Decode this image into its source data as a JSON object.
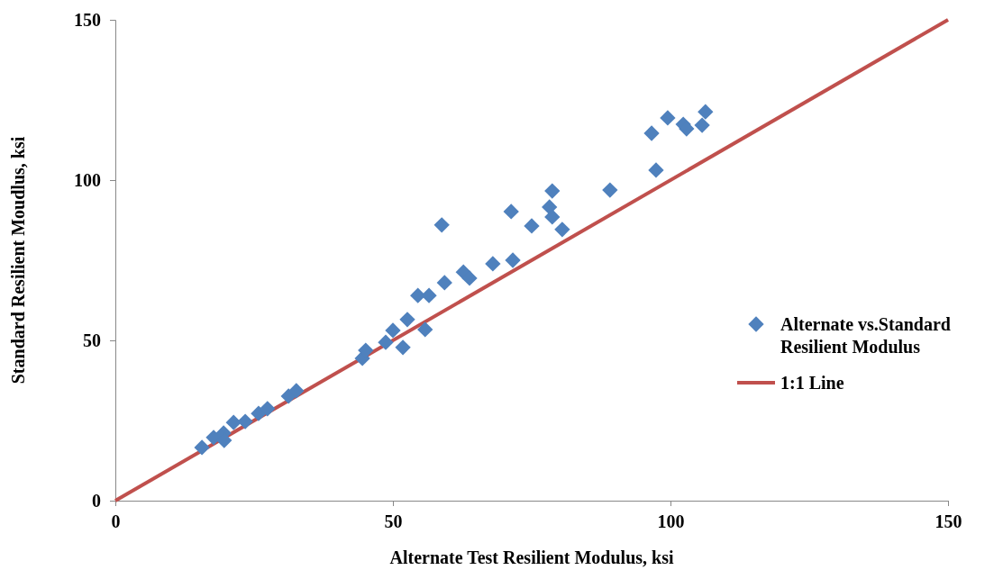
{
  "chart_data": {
    "type": "scatter",
    "xlabel": "Alternate Test Resilient Modulus, ksi",
    "ylabel": "Standard Resilient Moudlus, ksi",
    "xlim": [
      0,
      150
    ],
    "xticks": [
      0,
      50,
      100,
      150
    ],
    "ylim": [
      0,
      150
    ],
    "yticks": [
      0,
      50,
      100,
      150
    ],
    "grid": false,
    "legend": "right",
    "series": [
      {
        "name": "Alternate vs.Standard Resilient Modulus",
        "marker": "diamond",
        "color": "#4f81bd",
        "x": [
          15.6,
          17.7,
          19.5,
          19.6,
          21.3,
          23.4,
          25.8,
          27.4,
          31.2,
          32.6,
          44.5,
          45.1,
          48.7,
          50.0,
          51.8,
          52.6,
          54.5,
          56.5,
          55.8,
          58.8,
          59.3,
          62.7,
          63.8,
          68.0,
          71.3,
          71.6,
          75.0,
          78.2,
          78.7,
          78.7,
          80.5,
          89.1,
          96.6,
          97.4,
          99.5,
          102.3,
          102.9,
          105.7,
          106.3
        ],
        "values": [
          16.6,
          19.7,
          21.1,
          18.8,
          24.4,
          24.7,
          27.2,
          28.7,
          32.6,
          34.3,
          44.4,
          46.9,
          49.4,
          53.1,
          47.8,
          56.5,
          64.0,
          64.0,
          53.4,
          86.0,
          68.0,
          71.3,
          69.4,
          73.9,
          90.2,
          75.0,
          85.7,
          91.6,
          96.6,
          88.5,
          84.6,
          96.9,
          114.6,
          103.1,
          119.4,
          117.4,
          116.0,
          117.1,
          121.3
        ]
      },
      {
        "name": "1:1 Line",
        "type": "line",
        "marker": "none",
        "line_style": "solid",
        "color": "#c0504d",
        "x": [
          0,
          150
        ],
        "values": [
          0,
          150
        ]
      }
    ]
  }
}
